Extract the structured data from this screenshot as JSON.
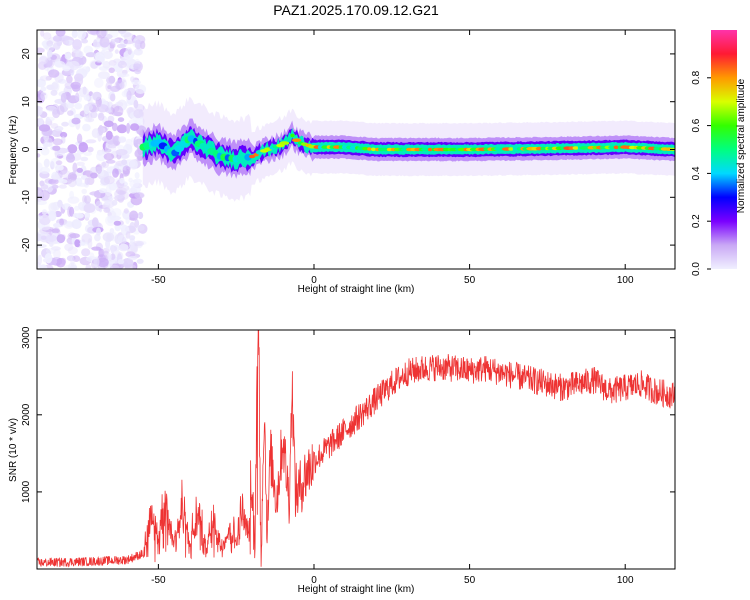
{
  "title": "PAZ1.2025.170.09.12.G21",
  "chart_data": [
    {
      "type": "heatmap",
      "xlabel": "Height of straight line (km)",
      "ylabel": "Frequency (Hz)",
      "xlim": [
        -89,
        116
      ],
      "ylim": [
        -25,
        25
      ],
      "xticks": [
        -50,
        0,
        50,
        100
      ],
      "yticks": [
        -20,
        -10,
        0,
        10,
        20
      ],
      "colorbar": {
        "label": "Normalized spectral amplitude",
        "range": [
          0,
          1
        ],
        "ticks": [
          "0.0",
          "0.2",
          "0.4",
          "0.6",
          "0.8"
        ],
        "colormap": [
          "#f0f0ff",
          "#c9a8f5",
          "#7a00ff",
          "#0000ff",
          "#00d9ff",
          "#00ff7f",
          "#33ff00",
          "#d9ff00",
          "#ff9900",
          "#ff1a33",
          "#ff33aa"
        ]
      },
      "ridge": {
        "x": [
          -55,
          -50,
          -45,
          -40,
          -35,
          -30,
          -25,
          -20,
          -15,
          -10,
          -7,
          -5,
          0,
          10,
          20,
          30,
          50,
          75,
          100,
          116
        ],
        "y": [
          0.5,
          1.5,
          -1.0,
          2.5,
          0.5,
          -1.5,
          -2.0,
          -1.5,
          0,
          1.0,
          3.0,
          1.5,
          0.5,
          0.5,
          0,
          0,
          0,
          0.2,
          0.5,
          0
        ]
      },
      "noise_region_x": [
        -89,
        -55
      ]
    },
    {
      "type": "line",
      "xlabel": "Height of straight line (km)",
      "ylabel": "SNR (10 * v/v)",
      "xlim": [
        -89,
        116
      ],
      "ylim": [
        0,
        3100
      ],
      "xticks": [
        -50,
        0,
        50,
        100
      ],
      "yticks": [
        1000,
        2000,
        3000
      ],
      "color": "#ee3333",
      "series": [
        {
          "x": [
            -89,
            -80,
            -70,
            -60,
            -55,
            -52,
            -50,
            -48,
            -45,
            -42,
            -40,
            -37,
            -35,
            -32,
            -30,
            -27,
            -25,
            -23,
            -21,
            -20,
            -19,
            -18.5,
            -18,
            -17.5,
            -17,
            -16,
            -15,
            -14,
            -12,
            -10,
            -8,
            -7,
            -6,
            -5,
            -3,
            0,
            5,
            10,
            15,
            20,
            25,
            30,
            35,
            40,
            45,
            50,
            55,
            60,
            65,
            70,
            75,
            80,
            85,
            90,
            95,
            100,
            105,
            110,
            116
          ],
          "y": [
            80,
            90,
            100,
            120,
            200,
            600,
            400,
            900,
            350,
            800,
            300,
            700,
            250,
            600,
            300,
            500,
            350,
            700,
            400,
            1000,
            300,
            2000,
            3080,
            1800,
            200,
            2100,
            400,
            1500,
            900,
            1700,
            900,
            2400,
            1000,
            1000,
            1200,
            1400,
            1600,
            1800,
            2000,
            2200,
            2400,
            2550,
            2600,
            2620,
            2600,
            2570,
            2600,
            2550,
            2500,
            2450,
            2400,
            2350,
            2400,
            2450,
            2300,
            2350,
            2400,
            2300,
            2250
          ]
        }
      ]
    }
  ]
}
